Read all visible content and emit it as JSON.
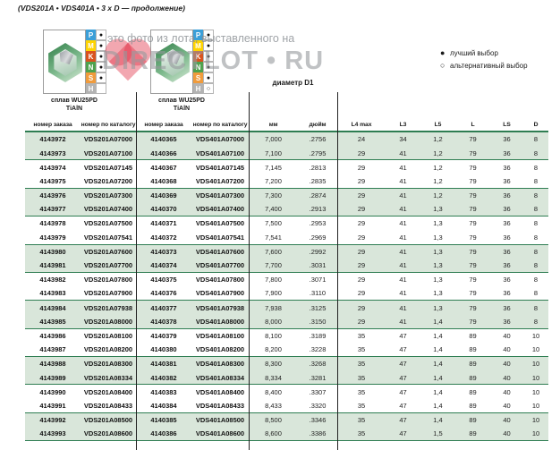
{
  "page": {
    "title": "(VDS201A • VDS401A • 3 x D — продолжение)"
  },
  "watermark": {
    "line1": "это фото из лота, выставленного на",
    "line2": "DIRECTLOT • RU",
    "heart_color": "#e23c50"
  },
  "legend": {
    "best_icon": "●",
    "best": "лучший выбор",
    "alt_icon": "○",
    "alternative": "альтернативный выбор"
  },
  "diameter_label": "диаметр D1",
  "products": [
    {
      "alloy": "сплав WU25PD",
      "coating": "TiAlN",
      "grades": [
        {
          "letter": "P",
          "mark": "best"
        },
        {
          "letter": "M",
          "mark": "best"
        },
        {
          "letter": "K",
          "mark": "best"
        },
        {
          "letter": "N",
          "mark": "best"
        },
        {
          "letter": "S",
          "mark": "best"
        },
        {
          "letter": "H",
          "mark": "none"
        }
      ]
    },
    {
      "alloy": "сплав WU25PD",
      "coating": "TiAlN",
      "grades": [
        {
          "letter": "P",
          "mark": "best"
        },
        {
          "letter": "M",
          "mark": "best"
        },
        {
          "letter": "K",
          "mark": "best"
        },
        {
          "letter": "N",
          "mark": "best"
        },
        {
          "letter": "S",
          "mark": "best"
        },
        {
          "letter": "H",
          "mark": "alt"
        }
      ]
    }
  ],
  "grade_colors": {
    "P": "#3b9fd8",
    "M": "#ffd400",
    "K": "#d9531e",
    "N": "#4ea24e",
    "S": "#f09b3c",
    "H": "#b3b3b3"
  },
  "mark_glyphs": {
    "best": "●",
    "alt": "○",
    "none": ""
  },
  "colors": {
    "band": "#d9e6da",
    "rule": "#2e7d52",
    "vline": "#222222"
  },
  "table": {
    "columns": [
      "номер заказа",
      "номер по каталогу",
      "номер заказа",
      "номер по каталогу",
      "мм",
      "дюйм",
      "L4 max",
      "L3",
      "L5",
      "L",
      "LS",
      "D"
    ],
    "rows": [
      [
        "4143972",
        "VDS201A07000",
        "4140365",
        "VDS401A07000",
        "7,000",
        ".2756",
        "24",
        "34",
        "1,2",
        "79",
        "36",
        "8"
      ],
      [
        "4143973",
        "VDS201A07100",
        "4140366",
        "VDS401A07100",
        "7,100",
        ".2795",
        "29",
        "41",
        "1,2",
        "79",
        "36",
        "8"
      ],
      [
        "4143974",
        "VDS201A07145",
        "4140367",
        "VDS401A07145",
        "7,145",
        ".2813",
        "29",
        "41",
        "1,2",
        "79",
        "36",
        "8"
      ],
      [
        "4143975",
        "VDS201A07200",
        "4140368",
        "VDS401A07200",
        "7,200",
        ".2835",
        "29",
        "41",
        "1,2",
        "79",
        "36",
        "8"
      ],
      [
        "4143976",
        "VDS201A07300",
        "4140369",
        "VDS401A07300",
        "7,300",
        ".2874",
        "29",
        "41",
        "1,2",
        "79",
        "36",
        "8"
      ],
      [
        "4143977",
        "VDS201A07400",
        "4140370",
        "VDS401A07400",
        "7,400",
        ".2913",
        "29",
        "41",
        "1,3",
        "79",
        "36",
        "8"
      ],
      [
        "4143978",
        "VDS201A07500",
        "4140371",
        "VDS401A07500",
        "7,500",
        ".2953",
        "29",
        "41",
        "1,3",
        "79",
        "36",
        "8"
      ],
      [
        "4143979",
        "VDS201A07541",
        "4140372",
        "VDS401A07541",
        "7,541",
        ".2969",
        "29",
        "41",
        "1,3",
        "79",
        "36",
        "8"
      ],
      [
        "4143980",
        "VDS201A07600",
        "4140373",
        "VDS401A07600",
        "7,600",
        ".2992",
        "29",
        "41",
        "1,3",
        "79",
        "36",
        "8"
      ],
      [
        "4143981",
        "VDS201A07700",
        "4140374",
        "VDS401A07700",
        "7,700",
        ".3031",
        "29",
        "41",
        "1,3",
        "79",
        "36",
        "8"
      ],
      [
        "4143982",
        "VDS201A07800",
        "4140375",
        "VDS401A07800",
        "7,800",
        ".3071",
        "29",
        "41",
        "1,3",
        "79",
        "36",
        "8"
      ],
      [
        "4143983",
        "VDS201A07900",
        "4140376",
        "VDS401A07900",
        "7,900",
        ".3110",
        "29",
        "41",
        "1,3",
        "79",
        "36",
        "8"
      ],
      [
        "4143984",
        "VDS201A07938",
        "4140377",
        "VDS401A07938",
        "7,938",
        ".3125",
        "29",
        "41",
        "1,3",
        "79",
        "36",
        "8"
      ],
      [
        "4143985",
        "VDS201A08000",
        "4140378",
        "VDS401A08000",
        "8,000",
        ".3150",
        "29",
        "41",
        "1,4",
        "79",
        "36",
        "8"
      ],
      [
        "4143986",
        "VDS201A08100",
        "4140379",
        "VDS401A08100",
        "8,100",
        ".3189",
        "35",
        "47",
        "1,4",
        "89",
        "40",
        "10"
      ],
      [
        "4143987",
        "VDS201A08200",
        "4140380",
        "VDS401A08200",
        "8,200",
        ".3228",
        "35",
        "47",
        "1,4",
        "89",
        "40",
        "10"
      ],
      [
        "4143988",
        "VDS201A08300",
        "4140381",
        "VDS401A08300",
        "8,300",
        ".3268",
        "35",
        "47",
        "1,4",
        "89",
        "40",
        "10"
      ],
      [
        "4143989",
        "VDS201A08334",
        "4140382",
        "VDS401A08334",
        "8,334",
        ".3281",
        "35",
        "47",
        "1,4",
        "89",
        "40",
        "10"
      ],
      [
        "4143990",
        "VDS201A08400",
        "4140383",
        "VDS401A08400",
        "8,400",
        ".3307",
        "35",
        "47",
        "1,4",
        "89",
        "40",
        "10"
      ],
      [
        "4143991",
        "VDS201A08433",
        "4140384",
        "VDS401A08433",
        "8,433",
        ".3320",
        "35",
        "47",
        "1,4",
        "89",
        "40",
        "10"
      ],
      [
        "4143992",
        "VDS201A08500",
        "4140385",
        "VDS401A08500",
        "8,500",
        ".3346",
        "35",
        "47",
        "1,4",
        "89",
        "40",
        "10"
      ],
      [
        "4143993",
        "VDS201A08600",
        "4140386",
        "VDS401A08600",
        "8,600",
        ".3386",
        "35",
        "47",
        "1,5",
        "89",
        "40",
        "10"
      ]
    ]
  }
}
